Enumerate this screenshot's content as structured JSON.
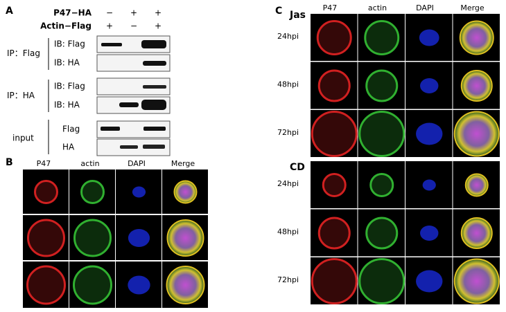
{
  "panel_a": {
    "label": "A",
    "conditions": [
      {
        "name": "P47−HA",
        "marks": [
          "−",
          "+",
          "+"
        ]
      },
      {
        "name": "Actin−Flag",
        "marks": [
          "+",
          "−",
          "+"
        ]
      }
    ],
    "groups": [
      {
        "name": "IP：Flag",
        "blots": [
          "IB: Flag",
          "IB: HA"
        ]
      },
      {
        "name": "IP：HA",
        "blots": [
          "IB: Flag",
          "IB: HA"
        ]
      },
      {
        "name": "input",
        "blots": [
          "Flag",
          "HA"
        ]
      }
    ]
  },
  "panel_b": {
    "label": "B",
    "columns": [
      "P47",
      "actin",
      "DAPI",
      "Merge"
    ]
  },
  "panel_c": {
    "label": "C",
    "columns": [
      "P47",
      "actin",
      "DAPI",
      "Merge"
    ],
    "groups": [
      {
        "name": "Jas",
        "rows": [
          "24hpi",
          "48hpi",
          "72hpi"
        ]
      },
      {
        "name": "CD",
        "rows": [
          "24hpi",
          "48hpi",
          "72hpi"
        ]
      }
    ]
  }
}
